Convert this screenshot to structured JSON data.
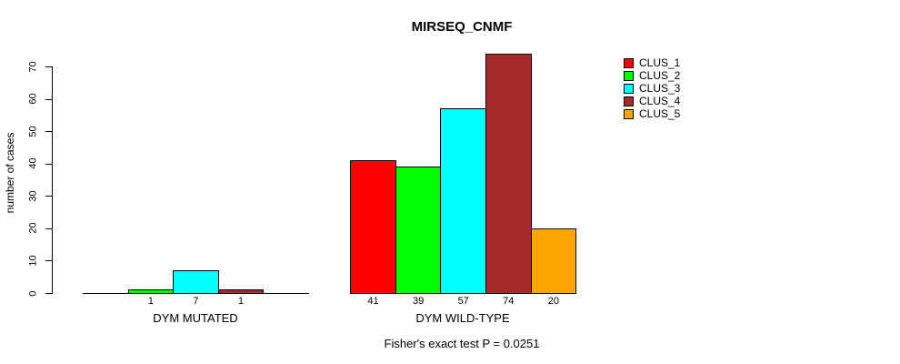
{
  "chart_data": {
    "type": "bar",
    "title": "MIRSEQ_CNMF",
    "xlabel": "",
    "ylabel": "number of cases",
    "ylim": [
      0,
      70
    ],
    "yticks": [
      0,
      10,
      20,
      30,
      40,
      50,
      60,
      70
    ],
    "categories": [
      "DYM MUTATED",
      "DYM WILD-TYPE"
    ],
    "series": [
      {
        "name": "CLUS_1",
        "color": "#FF0000",
        "values": [
          0,
          41
        ]
      },
      {
        "name": "CLUS_2",
        "color": "#00FF00",
        "values": [
          1,
          39
        ]
      },
      {
        "name": "CLUS_3",
        "color": "#00FFFF",
        "values": [
          7,
          57
        ]
      },
      {
        "name": "CLUS_4",
        "color": "#A52A2A",
        "values": [
          1,
          74
        ]
      },
      {
        "name": "CLUS_5",
        "color": "#FFA500",
        "values": [
          0,
          20
        ]
      }
    ],
    "show_value_labels": true,
    "hide_zero_value_labels": true,
    "grid": false,
    "legend_position": "right-outside",
    "annotation": "Fisher's exact test P = 0.0251"
  }
}
